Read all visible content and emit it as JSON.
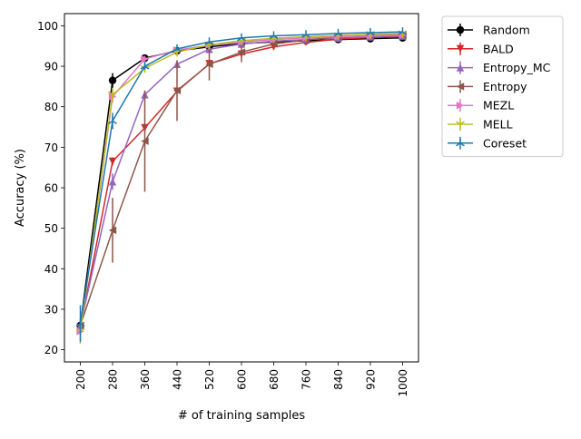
{
  "chart_data": {
    "type": "line",
    "title": "",
    "xlabel": "# of training samples",
    "ylabel": "Accuracy (%)",
    "x": [
      200,
      280,
      360,
      440,
      520,
      600,
      680,
      760,
      840,
      920,
      1000
    ],
    "x_tick_labels": [
      "200",
      "280",
      "360",
      "440",
      "520",
      "600",
      "680",
      "760",
      "840",
      "920",
      "1000"
    ],
    "y_ticks": [
      20,
      30,
      40,
      50,
      60,
      70,
      80,
      90,
      100
    ],
    "ylim": [
      17,
      103
    ],
    "grid": false,
    "legend_position": "outside top-right",
    "series": [
      {
        "name": "Random",
        "color": "#000000",
        "marker": "circle",
        "values": [
          26.0,
          86.5,
          92.0,
          93.8,
          94.8,
          95.6,
          96.0,
          96.3,
          96.6,
          96.8,
          97.0
        ],
        "errors": [
          0.8,
          1.8,
          0.7,
          0.5,
          0.4,
          0.4,
          0.3,
          0.3,
          0.3,
          0.3,
          0.3
        ]
      },
      {
        "name": "BALD",
        "color": "#d62728",
        "marker": "triangle-down",
        "values": [
          25.5,
          66.5,
          74.8,
          83.8,
          90.6,
          93.0,
          94.8,
          95.9,
          96.7,
          97.1,
          97.4
        ],
        "errors": [
          0.5,
          1.0,
          1.0,
          0.5,
          0.4,
          0.3,
          0.3,
          0.3,
          0.2,
          0.2,
          0.2
        ]
      },
      {
        "name": "Entropy_MC",
        "color": "#9467bd",
        "marker": "triangle-up",
        "values": [
          26.0,
          61.5,
          83.0,
          90.5,
          94.2,
          95.5,
          96.2,
          96.6,
          97.0,
          97.3,
          97.5
        ],
        "errors": [
          0.5,
          2.0,
          1.0,
          0.6,
          0.4,
          0.3,
          0.3,
          0.2,
          0.2,
          0.2,
          0.2
        ]
      },
      {
        "name": "Entropy",
        "color": "#8c564b",
        "marker": "triangle-left",
        "values": [
          26.0,
          49.5,
          71.5,
          84.0,
          90.5,
          93.5,
          95.5,
          96.5,
          97.2,
          97.6,
          97.9
        ],
        "errors": [
          1.0,
          8.0,
          12.5,
          7.5,
          4.0,
          2.5,
          1.0,
          0.5,
          0.4,
          0.3,
          0.3
        ]
      },
      {
        "name": "MEZL",
        "color": "#e377c2",
        "marker": "triangle-right",
        "values": [
          24.5,
          82.5,
          91.8,
          94.0,
          95.2,
          96.0,
          96.6,
          97.0,
          97.3,
          97.5,
          97.7
        ],
        "errors": [
          0.8,
          1.5,
          0.8,
          0.5,
          0.4,
          0.3,
          0.3,
          0.2,
          0.2,
          0.2,
          0.2
        ]
      },
      {
        "name": "MELL",
        "color": "#bcbd22",
        "marker": "tri-down",
        "values": [
          24.5,
          83.0,
          89.5,
          93.5,
          95.3,
          96.3,
          96.9,
          97.3,
          97.6,
          97.9,
          98.1
        ],
        "errors": [
          3.0,
          1.5,
          1.0,
          0.6,
          0.4,
          0.3,
          0.3,
          0.2,
          0.2,
          0.2,
          0.2
        ]
      },
      {
        "name": "Coreset",
        "color": "#1f77b4",
        "marker": "tri-up",
        "values": [
          26.5,
          76.5,
          90.0,
          94.3,
          96.0,
          97.0,
          97.5,
          97.8,
          98.1,
          98.3,
          98.5
        ],
        "errors": [
          4.5,
          2.0,
          0.8,
          0.4,
          0.3,
          0.2,
          0.2,
          0.2,
          0.2,
          0.2,
          0.2
        ]
      }
    ]
  }
}
